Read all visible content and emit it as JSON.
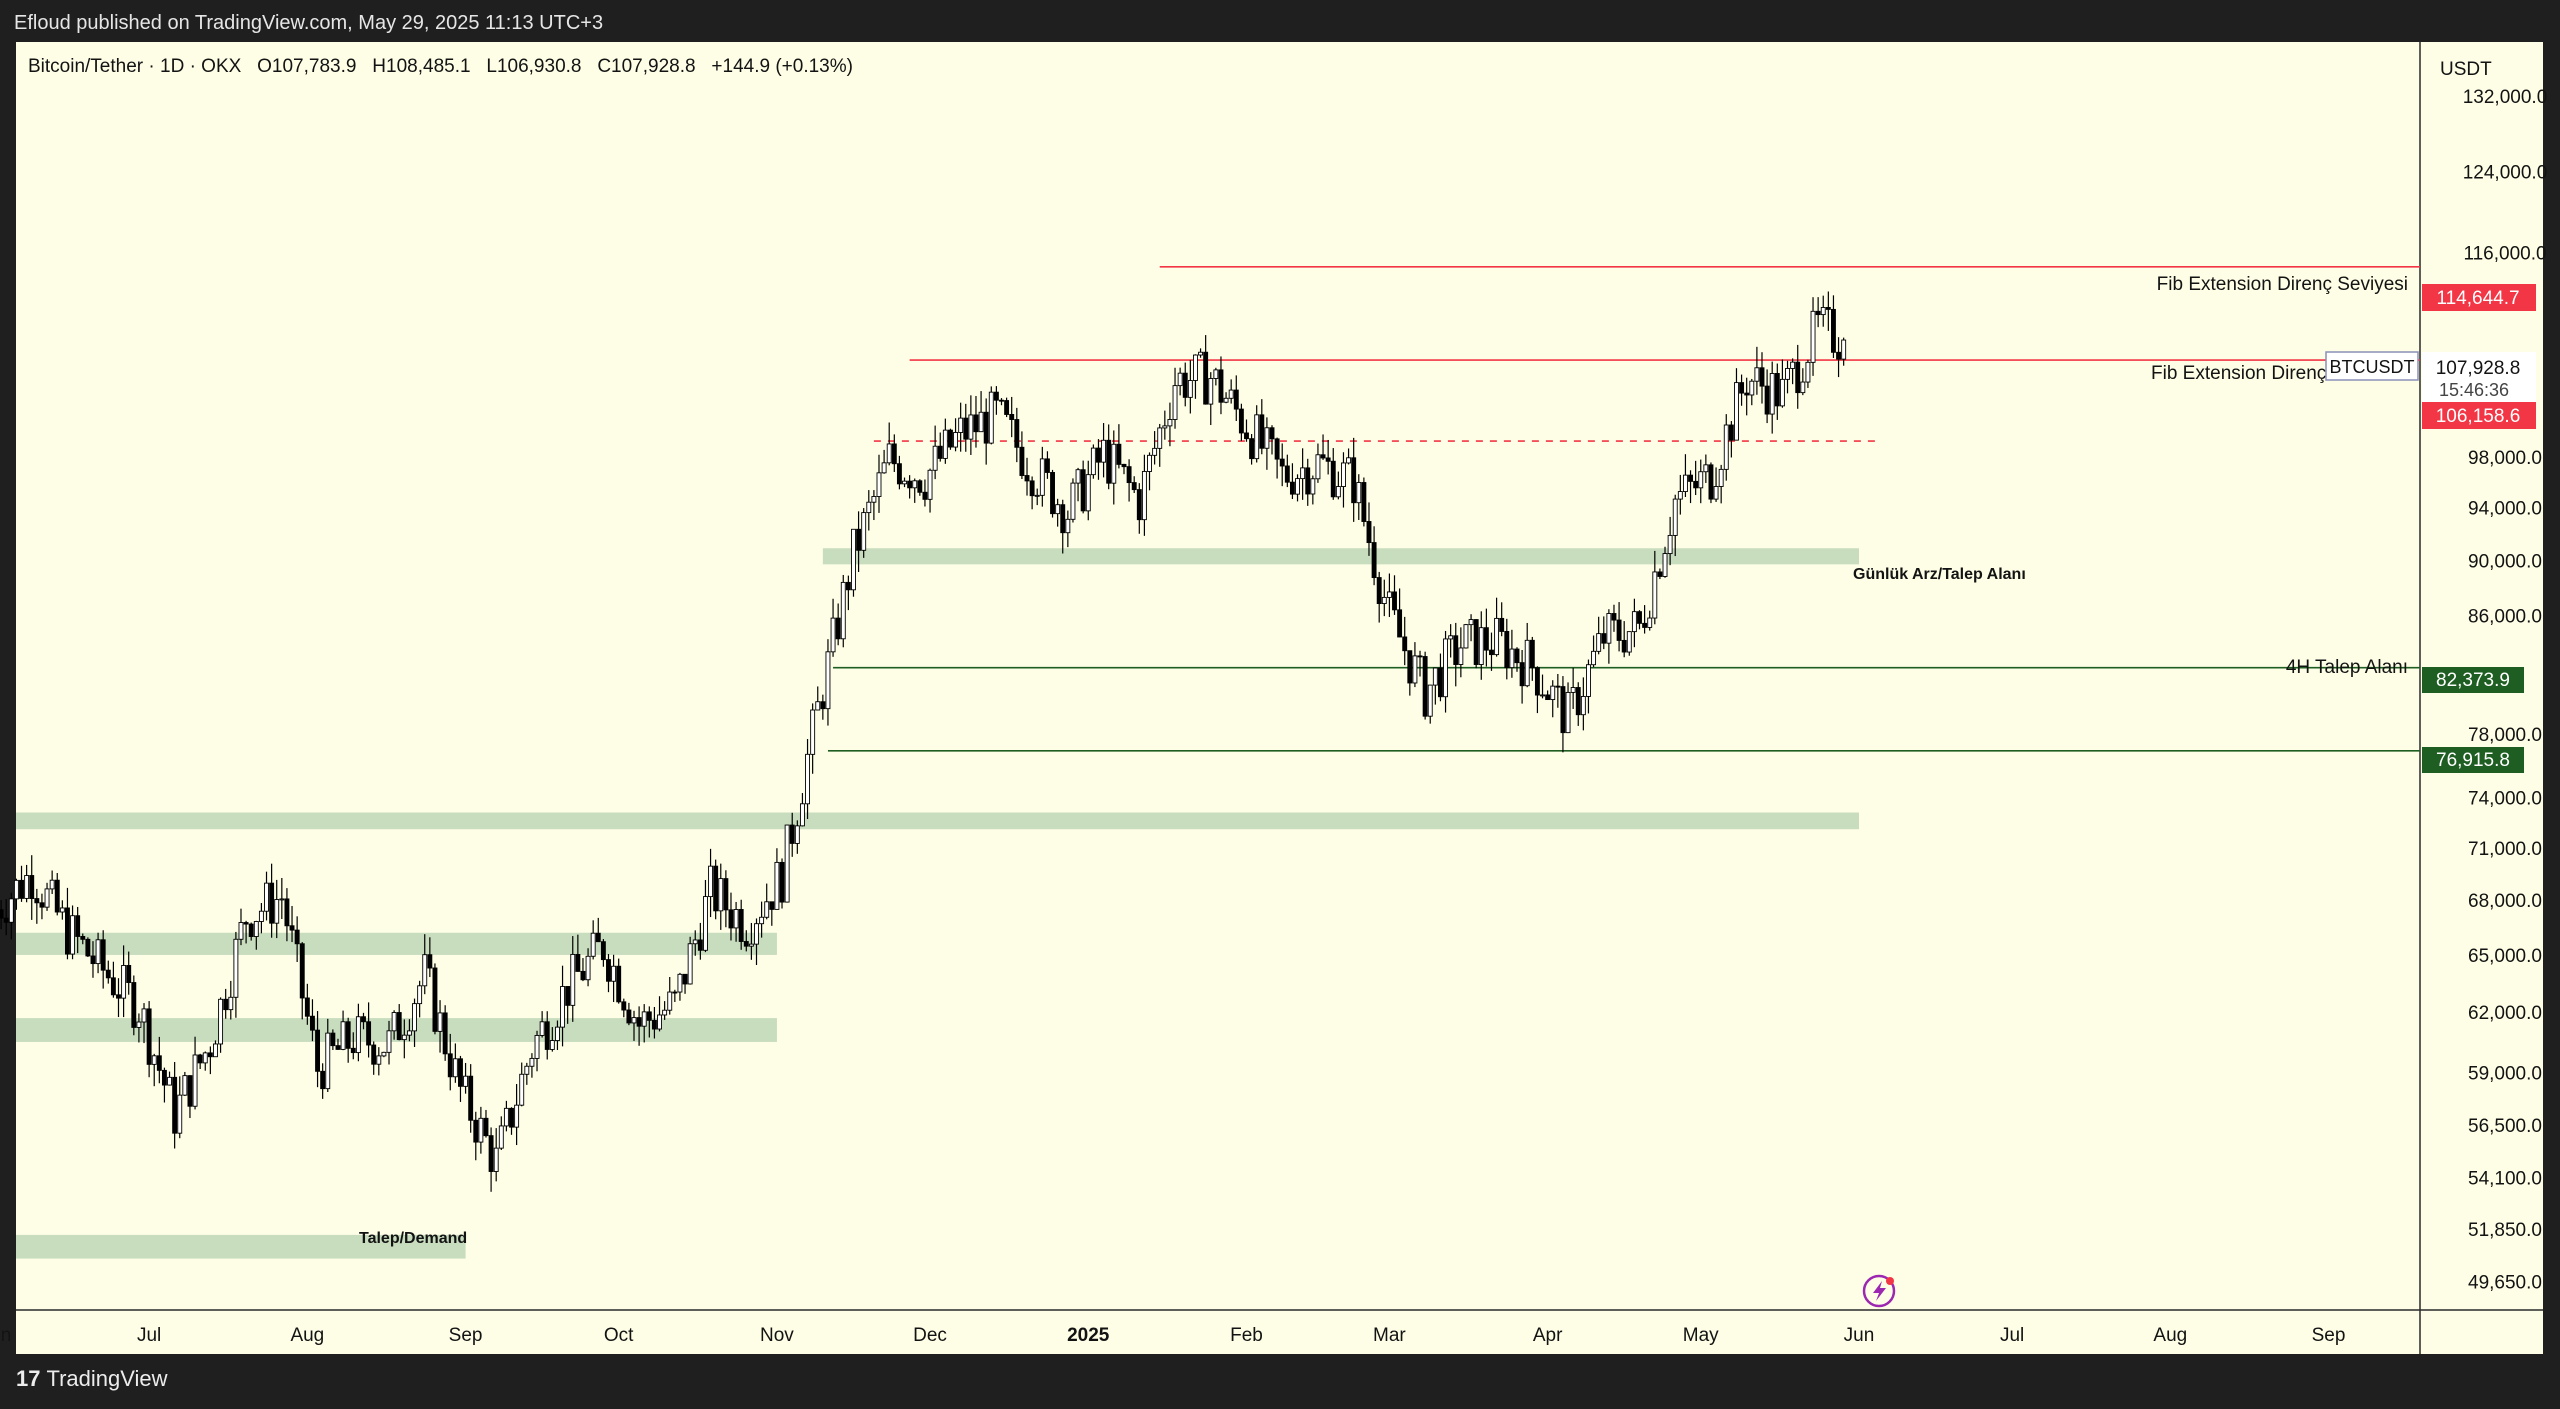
{
  "header": {
    "publisher_line": "Efloud published on TradingView.com, May 29, 2025 11:13 UTC+3"
  },
  "legend": {
    "symbol": "Bitcoin/Tether · 1D · OKX",
    "open": "O107,783.9",
    "high": "H108,485.1",
    "low": "L106,930.8",
    "close": "C107,928.8",
    "change": "+144.9 (+0.13%)"
  },
  "price_axis": {
    "currency": "USDT",
    "ticks": [
      "132,000.0",
      "124,000.0",
      "116,000.0",
      "98,000.0",
      "94,000.0",
      "90,000.0",
      "86,000.0",
      "78,000.0",
      "74,000.0",
      "71,000.0",
      "68,000.0",
      "65,000.0",
      "62,000.0",
      "59,000.0",
      "56,500.0",
      "54,100.0",
      "51,850.0",
      "49,650.0"
    ],
    "tick_values": [
      132000,
      124000,
      116000,
      98000,
      94000,
      90000,
      86000,
      78000,
      74000,
      71000,
      68000,
      65000,
      62000,
      59000,
      56500,
      54100,
      51850,
      49650
    ]
  },
  "time_axis": {
    "labels": [
      "Jun",
      "Jul",
      "Aug",
      "Sep",
      "Oct",
      "Nov",
      "Dec",
      "2025",
      "Feb",
      "Mar",
      "Apr",
      "May",
      "Jun",
      "Jul",
      "Aug",
      "Sep"
    ]
  },
  "badges": {
    "fib_upper": {
      "value": "114,644.7",
      "color": "#f23645"
    },
    "current": {
      "symbol": "BTCUSDT",
      "price": "107,928.8",
      "countdown": "15:46:36"
    },
    "fib_lower": {
      "value": "106,158.6",
      "color": "#f23645"
    },
    "demand_4h": {
      "value": "82,373.9",
      "color": "#1e5e22"
    },
    "support": {
      "value": "76,915.8",
      "color": "#1e5e22"
    }
  },
  "annotations": {
    "fib_upper_label": "Fib Extension Direnç Seviyesi",
    "fib_lower_label": "Fib Extension Direnç",
    "daily_zone_label": "Günlük Arz/Talep Alanı",
    "demand_4h_label": "4H Talep Alanı",
    "demand_label": "Talep/Demand"
  },
  "footer": {
    "brand": "TradingView"
  },
  "colors": {
    "background": "#fefee6",
    "resistance": "#f23645",
    "support": "#1e5e22",
    "zone": "#c8dcbe"
  },
  "chart_data": {
    "type": "candlestick",
    "title": "Bitcoin/Tether · 1D · OKX",
    "ylabel": "USDT",
    "ylim": [
      48500,
      138000
    ],
    "y_scale": "log",
    "x_range": [
      "2024-06-01",
      "2025-09-15"
    ],
    "grid": false,
    "series": [
      {
        "name": "BTCUSDT",
        "weekly_close": [
          [
            "2024-06-01",
            67500
          ],
          [
            "2024-06-08",
            69500
          ],
          [
            "2024-06-15",
            66300
          ],
          [
            "2024-06-22",
            64200
          ],
          [
            "2024-06-29",
            62300
          ],
          [
            "2024-07-06",
            57000
          ],
          [
            "2024-07-13",
            60500
          ],
          [
            "2024-07-20",
            67100
          ],
          [
            "2024-07-27",
            68200
          ],
          [
            "2024-08-03",
            59200
          ],
          [
            "2024-08-10",
            60700
          ],
          [
            "2024-08-17",
            60400
          ],
          [
            "2024-08-24",
            63900
          ],
          [
            "2024-08-31",
            58100
          ],
          [
            "2024-09-07",
            54800
          ],
          [
            "2024-09-14",
            60200
          ],
          [
            "2024-09-21",
            63300
          ],
          [
            "2024-09-28",
            65500
          ],
          [
            "2024-10-05",
            61400
          ],
          [
            "2024-10-12",
            62400
          ],
          [
            "2024-10-19",
            68500
          ],
          [
            "2024-10-26",
            66700
          ],
          [
            "2024-11-02",
            69400
          ],
          [
            "2024-11-09",
            79500
          ],
          [
            "2024-11-16",
            90500
          ],
          [
            "2024-11-23",
            97800
          ],
          [
            "2024-11-30",
            96400
          ],
          [
            "2024-12-07",
            99900
          ],
          [
            "2024-12-14",
            101400
          ],
          [
            "2024-12-21",
            97100
          ],
          [
            "2024-12-28",
            93700
          ],
          [
            "2025-01-04",
            98200
          ],
          [
            "2025-01-11",
            94600
          ],
          [
            "2025-01-18",
            104400
          ],
          [
            "2025-01-25",
            104700
          ],
          [
            "2025-02-01",
            100600
          ],
          [
            "2025-02-08",
            96500
          ],
          [
            "2025-02-15",
            97500
          ],
          [
            "2025-02-22",
            96100
          ],
          [
            "2025-03-01",
            86000
          ],
          [
            "2025-03-08",
            80700
          ],
          [
            "2025-03-15",
            84000
          ],
          [
            "2025-03-22",
            84200
          ],
          [
            "2025-03-29",
            82500
          ],
          [
            "2025-04-05",
            79000
          ],
          [
            "2025-04-12",
            84500
          ],
          [
            "2025-04-19",
            85100
          ],
          [
            "2025-04-26",
            94600
          ],
          [
            "2025-05-03",
            96500
          ],
          [
            "2025-05-10",
            104600
          ],
          [
            "2025-05-17",
            103200
          ],
          [
            "2025-05-24",
            109000
          ],
          [
            "2025-05-29",
            107928.8
          ]
        ]
      }
    ],
    "levels": [
      {
        "label": "Fib Extension Direnç Seviyesi",
        "value": 114644.7,
        "from": "2025-01-15",
        "style": "solid"
      },
      {
        "label": "Fib Extension Direnç",
        "value": 106158.6,
        "from": "2024-11-27",
        "style": "solid"
      },
      {
        "label": "",
        "value": 99300,
        "from": "2024-11-20",
        "to": "2025-06-05",
        "style": "dashed"
      },
      {
        "label": "4H Talep Alanı",
        "value": 82373.9,
        "from": "2024-11-12",
        "style": "solid"
      },
      {
        "label": "",
        "value": 76915.8,
        "from": "2024-11-11",
        "style": "solid"
      }
    ],
    "zones": [
      {
        "label": "Günlük Arz/Talep Alanı",
        "low": 89700,
        "high": 90900,
        "from": "2024-11-10",
        "to": "2025-06-01"
      },
      {
        "label": "",
        "low": 72100,
        "high": 73100,
        "from": "2024-06-01",
        "to": "2025-06-01"
      },
      {
        "label": "",
        "low": 65000,
        "high": 66200,
        "from": "2024-06-01",
        "to": "2024-11-01"
      },
      {
        "label": "",
        "low": 60500,
        "high": 61700,
        "from": "2024-06-01",
        "to": "2024-11-01"
      },
      {
        "label": "Talep/Demand",
        "low": 50600,
        "high": 51600,
        "from": "2024-06-01",
        "to": "2024-09-01"
      }
    ]
  }
}
